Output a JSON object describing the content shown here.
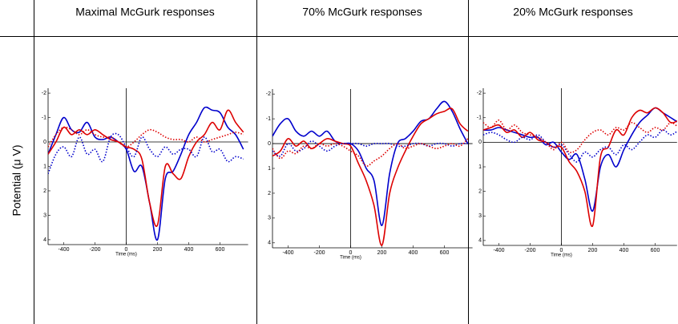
{
  "row_label": "Potential (μ V)",
  "chart_data": [
    {
      "type": "line",
      "title": "Maximal McGurk responses",
      "xlabel": "Time (ms)",
      "x": [
        -500,
        -450,
        -400,
        -350,
        -300,
        -250,
        -200,
        -150,
        -100,
        -50,
        0,
        50,
        100,
        150,
        200,
        250,
        300,
        350,
        400,
        450,
        500,
        550,
        600,
        650,
        700,
        750
      ],
      "xlim": [
        -500,
        780
      ],
      "ylim": [
        -2.2,
        4.2
      ],
      "y_inverted": true,
      "xticks": [
        -400,
        -200,
        0,
        200,
        400,
        600
      ],
      "yticks": [
        -2,
        -1,
        0,
        1,
        2,
        3,
        4
      ],
      "series": [
        {
          "color": "#0000cc",
          "style": "solid",
          "values": [
            0.5,
            -0.3,
            -1.0,
            -0.5,
            -0.4,
            -0.8,
            -0.2,
            -0.1,
            -0.2,
            0.0,
            0.3,
            1.2,
            1.0,
            2.5,
            4.0,
            1.5,
            1.2,
            0.5,
            -0.3,
            -0.8,
            -1.4,
            -1.3,
            -1.2,
            -0.6,
            -0.3,
            0.3
          ]
        },
        {
          "color": "#dd0000",
          "style": "solid",
          "values": [
            0.5,
            0.0,
            -0.6,
            -0.3,
            -0.5,
            -0.3,
            -0.5,
            -0.3,
            -0.1,
            0.0,
            0.2,
            0.3,
            0.7,
            2.5,
            3.4,
            1.0,
            1.3,
            1.5,
            0.6,
            0.0,
            -0.3,
            -0.8,
            -0.5,
            -1.3,
            -0.8,
            -0.4
          ]
        },
        {
          "color": "#0000cc",
          "style": "dotted",
          "values": [
            1.3,
            0.5,
            0.2,
            0.6,
            -0.2,
            0.5,
            0.3,
            0.8,
            -0.2,
            -0.3,
            0.2,
            0.6,
            -0.2,
            0.3,
            0.6,
            0.2,
            0.5,
            0.3,
            0.3,
            0.6,
            -0.2,
            0.4,
            0.3,
            0.8,
            0.6,
            0.7
          ]
        },
        {
          "color": "#dd0000",
          "style": "dotted",
          "values": [
            0.2,
            -0.3,
            -0.6,
            -0.5,
            -0.3,
            -0.5,
            -0.3,
            -0.2,
            -0.2,
            0.0,
            0.2,
            0.0,
            -0.3,
            -0.5,
            -0.4,
            -0.2,
            -0.1,
            -0.1,
            0.0,
            -0.2,
            0.0,
            -0.1,
            -0.2,
            -0.3,
            -0.4,
            -0.3
          ]
        }
      ]
    },
    {
      "type": "line",
      "title": "70% McGurk responses",
      "xlabel": "Time (ms)",
      "x": [
        -500,
        -450,
        -400,
        -350,
        -300,
        -250,
        -200,
        -150,
        -100,
        -50,
        0,
        50,
        100,
        150,
        200,
        250,
        300,
        350,
        400,
        450,
        500,
        550,
        600,
        650,
        700,
        750
      ],
      "xlim": [
        -500,
        780
      ],
      "ylim": [
        -2.2,
        4.2
      ],
      "y_inverted": true,
      "xticks": [
        -400,
        -200,
        0,
        200,
        400,
        600
      ],
      "yticks": [
        -2,
        -1,
        0,
        1,
        2,
        3,
        4
      ],
      "series": [
        {
          "color": "#0000cc",
          "style": "solid",
          "values": [
            -0.3,
            -0.8,
            -1.0,
            -0.5,
            -0.3,
            -0.5,
            -0.3,
            -0.5,
            -0.1,
            0.0,
            0.0,
            0.3,
            1.0,
            1.5,
            3.3,
            1.2,
            0.0,
            -0.2,
            -0.5,
            -0.9,
            -1.0,
            -1.4,
            -1.7,
            -1.3,
            -0.6,
            0.0
          ]
        },
        {
          "color": "#dd0000",
          "style": "solid",
          "values": [
            0.5,
            0.3,
            -0.2,
            0.1,
            -0.1,
            0.2,
            0.0,
            -0.2,
            -0.1,
            0.0,
            0.1,
            0.8,
            1.5,
            2.5,
            4.1,
            2.0,
            1.0,
            0.3,
            -0.3,
            -0.8,
            -1.0,
            -1.2,
            -1.3,
            -1.4,
            -0.8,
            -0.5
          ]
        },
        {
          "color": "#0000cc",
          "style": "dotted",
          "values": [
            0.3,
            0.5,
            0.0,
            0.3,
            0.2,
            -0.1,
            0.1,
            0.3,
            0.1,
            0.0,
            0.0,
            0.0,
            0.1,
            0.0,
            0.0,
            0.0,
            0.1,
            0.1,
            0.0,
            0.0,
            0.1,
            0.0,
            0.0,
            0.1,
            0.0,
            0.0
          ]
        },
        {
          "color": "#dd0000",
          "style": "dotted",
          "values": [
            0.2,
            0.6,
            0.3,
            0.4,
            0.1,
            0.2,
            0.0,
            0.1,
            0.0,
            0.1,
            0.3,
            0.5,
            0.9,
            0.7,
            0.5,
            0.2,
            0.0,
            0.2,
            0.1,
            0.0,
            0.1,
            0.2,
            0.1,
            0.0,
            0.1,
            -0.2
          ]
        }
      ]
    },
    {
      "type": "line",
      "title": "20% McGurk responses",
      "xlabel": "Time (ms)",
      "x": [
        -500,
        -450,
        -400,
        -350,
        -300,
        -250,
        -200,
        -150,
        -100,
        -50,
        0,
        50,
        100,
        150,
        200,
        250,
        300,
        350,
        400,
        450,
        500,
        550,
        600,
        650,
        700,
        750
      ],
      "xlim": [
        -500,
        740
      ],
      "ylim": [
        -2.2,
        4.2
      ],
      "y_inverted": true,
      "xticks": [
        -400,
        -200,
        0,
        200,
        400,
        600
      ],
      "yticks": [
        -2,
        -1,
        0,
        1,
        2,
        3,
        4
      ],
      "series": [
        {
          "color": "#0000cc",
          "style": "solid",
          "values": [
            -0.5,
            -0.5,
            -0.6,
            -0.5,
            -0.4,
            -0.3,
            -0.2,
            -0.2,
            0.1,
            0.0,
            0.4,
            0.7,
            0.5,
            1.5,
            2.8,
            1.0,
            0.5,
            1.0,
            0.3,
            -0.3,
            -0.8,
            -1.1,
            -1.4,
            -1.2,
            -1.0,
            -0.8
          ]
        },
        {
          "color": "#dd0000",
          "style": "solid",
          "values": [
            -0.5,
            -0.6,
            -0.7,
            -0.4,
            -0.5,
            -0.2,
            -0.4,
            -0.1,
            0.0,
            0.2,
            0.2,
            0.8,
            1.2,
            2.0,
            3.4,
            0.6,
            0.2,
            -0.5,
            -0.3,
            -1.0,
            -1.3,
            -1.2,
            -1.4,
            -1.2,
            -0.8,
            -0.9
          ]
        },
        {
          "color": "#0000cc",
          "style": "dotted",
          "values": [
            -0.3,
            -0.4,
            -0.3,
            -0.1,
            0.0,
            -0.2,
            -0.1,
            -0.3,
            0.0,
            0.2,
            0.1,
            0.5,
            0.8,
            0.4,
            0.6,
            0.3,
            0.2,
            0.5,
            0.1,
            0.3,
            0.0,
            -0.3,
            -0.2,
            -0.5,
            -0.3,
            -0.5
          ]
        },
        {
          "color": "#dd0000",
          "style": "dotted",
          "values": [
            -0.8,
            -0.6,
            -0.9,
            -0.5,
            -0.7,
            -0.4,
            -0.3,
            -0.2,
            0.0,
            0.3,
            0.0,
            0.4,
            0.3,
            -0.1,
            -0.4,
            -0.5,
            -0.3,
            -0.6,
            -0.5,
            -0.8,
            -0.6,
            -0.4,
            -0.6,
            -0.5,
            -0.8,
            -0.6
          ]
        }
      ]
    }
  ]
}
